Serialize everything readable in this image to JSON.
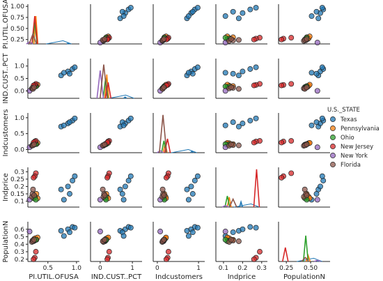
{
  "chart_data": {
    "type": "scatter",
    "layout": "pairplot",
    "variables": [
      "PI.UTIL.OFUSA",
      "IND.CUST..PCT",
      "Indcustomers",
      "Indprice",
      "PopulationN"
    ],
    "axis_labels": [
      "PI.UTIL.OFUSA",
      "IND.CUST..PCT",
      "Indcustomers",
      "Indprice",
      "PopulationN"
    ],
    "ranges": [
      [
        0.15,
        1.05
      ],
      [
        -0.3,
        1.3
      ],
      [
        -0.1,
        1.15
      ],
      [
        0.06,
        0.33
      ],
      [
        0.17,
        0.7
      ]
    ],
    "ticks": [
      [
        0.25,
        0.5,
        0.75,
        1.0
      ],
      [
        0.0,
        0.5,
        1.0
      ],
      [
        0.0,
        0.5,
        1.0
      ],
      [
        0.1,
        0.15,
        0.2,
        0.25,
        0.3
      ],
      [
        0.2,
        0.3,
        0.4,
        0.5,
        0.6
      ]
    ],
    "tick_labels": [
      [
        "0.25",
        "0.50",
        "0.75",
        "1.00"
      ],
      [
        "0.0",
        "0.5",
        "1.0"
      ],
      [
        "0.0",
        "0.5",
        "1.0"
      ],
      [
        "0.1",
        "0.15",
        "0.2",
        "0.25",
        "0.3"
      ],
      [
        "0.2",
        "0.3",
        "0.4",
        "0.5",
        "0.6"
      ]
    ],
    "bottom_ticks": [
      [
        0.5,
        1.0
      ],
      [
        0,
        1
      ],
      [
        0,
        1
      ],
      [
        0.1,
        0.2,
        0.3
      ],
      [
        0.25,
        0.5
      ]
    ],
    "bottom_tick_labels": [
      [
        "0.5",
        "1.0"
      ],
      [
        "0",
        "1"
      ],
      [
        "0",
        "1"
      ],
      [
        "0.1",
        "0.2",
        "0.3"
      ],
      [
        "0.25",
        "0.50"
      ]
    ],
    "diag_ylim": [
      0,
      1
    ],
    "grid": false,
    "legend": {
      "title": "U.S._STATE",
      "position": "right"
    },
    "series": [
      {
        "name": "Texas",
        "color": "#1f77b4",
        "points": [
          [
            0.73,
            0.62,
            0.72,
            0.18,
            0.58
          ],
          [
            0.85,
            0.78,
            0.82,
            0.2,
            0.6
          ],
          [
            0.93,
            0.88,
            0.91,
            0.24,
            0.63
          ],
          [
            0.97,
            0.95,
            0.98,
            0.27,
            0.62
          ],
          [
            0.88,
            0.69,
            0.86,
            0.15,
            0.56
          ],
          [
            0.78,
            0.73,
            0.76,
            0.11,
            0.51
          ]
        ],
        "density": [
          [
            0.6,
            0.0
          ],
          [
            0.75,
            0.04
          ],
          [
            0.9,
            0.08
          ],
          [
            1.05,
            0.0
          ]
        ],
        "diag_peaks": [
          0.02,
          0.03,
          0.04,
          0.13,
          0.02
        ]
      },
      {
        "name": "Pennsylvania",
        "color": "#ff7f0e",
        "points": [
          [
            0.26,
            0.17,
            0.18,
            0.12,
            0.47
          ],
          [
            0.28,
            0.21,
            0.2,
            0.13,
            0.48
          ],
          [
            0.32,
            0.25,
            0.21,
            0.12,
            0.49
          ],
          [
            0.3,
            0.19,
            0.17,
            0.15,
            0.46
          ]
        ],
        "diag_peaks": [
          0.7,
          0.6,
          0.25,
          0.25,
          0.15
        ]
      },
      {
        "name": "Ohio",
        "color": "#2ca02c",
        "points": [
          [
            0.25,
            0.15,
            0.15,
            0.12,
            0.44
          ],
          [
            0.27,
            0.17,
            0.16,
            0.13,
            0.45
          ],
          [
            0.29,
            0.18,
            0.17,
            0.11,
            0.46
          ]
        ],
        "diag_peaks": [
          0.55,
          0.5,
          0.3,
          0.28,
          0.65
        ]
      },
      {
        "name": "New Jersey",
        "color": "#d62728",
        "points": [
          [
            0.29,
            0.28,
            0.27,
            0.29,
            0.3
          ],
          [
            0.27,
            0.24,
            0.25,
            0.27,
            0.22
          ],
          [
            0.25,
            0.22,
            0.22,
            0.26,
            0.2
          ]
        ],
        "diag_peaks": [
          0.7,
          0.4,
          0.35,
          0.95,
          0.35
        ]
      },
      {
        "name": "New York",
        "color": "#9467bd",
        "points": [
          [
            0.18,
            0.0,
            0.07,
            0.11,
            0.57
          ]
        ],
        "diag_peaks": [
          0.05,
          0.7,
          0.05,
          0.04,
          0.03
        ]
      },
      {
        "name": "Florida",
        "color": "#8c564b",
        "points": [
          [
            0.22,
            0.1,
            0.12,
            0.13,
            0.43
          ],
          [
            0.23,
            0.12,
            0.14,
            0.15,
            0.45
          ],
          [
            0.24,
            0.08,
            0.13,
            0.18,
            0.44
          ],
          [
            0.26,
            0.14,
            0.16,
            0.14,
            0.46
          ]
        ],
        "diag_peaks": [
          0.25,
          0.85,
          0.95,
          0.2,
          0.1
        ]
      }
    ]
  }
}
